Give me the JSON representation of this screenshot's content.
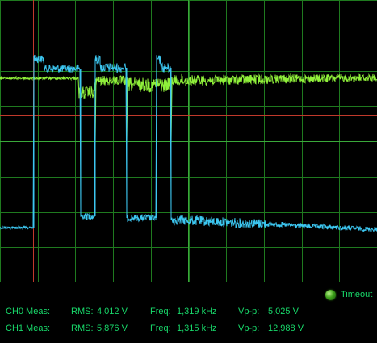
{
  "scope": {
    "background": "#000000",
    "grid_color": "#1f7a1f",
    "ch0_color": "#8fef3a",
    "ch1_color": "#3cc6f0",
    "marker_color": "#c0392b",
    "vertical_divisions": 8,
    "horizontal_divisions": 10
  },
  "status": {
    "timeout_label": "Timeout",
    "led_icon": "status-led-icon",
    "led_color": "#3fa21b"
  },
  "measurements": [
    {
      "channel": "CH0 Meas:",
      "rms_label": "RMS:",
      "rms_value": "4,012 V",
      "freq_label": "Freq:",
      "freq_value": "1,319 kHz",
      "vpp_label": "Vp-p:",
      "vpp_value": "5,025 V"
    },
    {
      "channel": "CH1 Meas:",
      "rms_label": "RMS:",
      "rms_value": "5,876 V",
      "freq_label": "Freq:",
      "freq_value": "1,315 kHz",
      "vpp_label": "Vp-p:",
      "vpp_value": "12,988 V"
    }
  ]
}
